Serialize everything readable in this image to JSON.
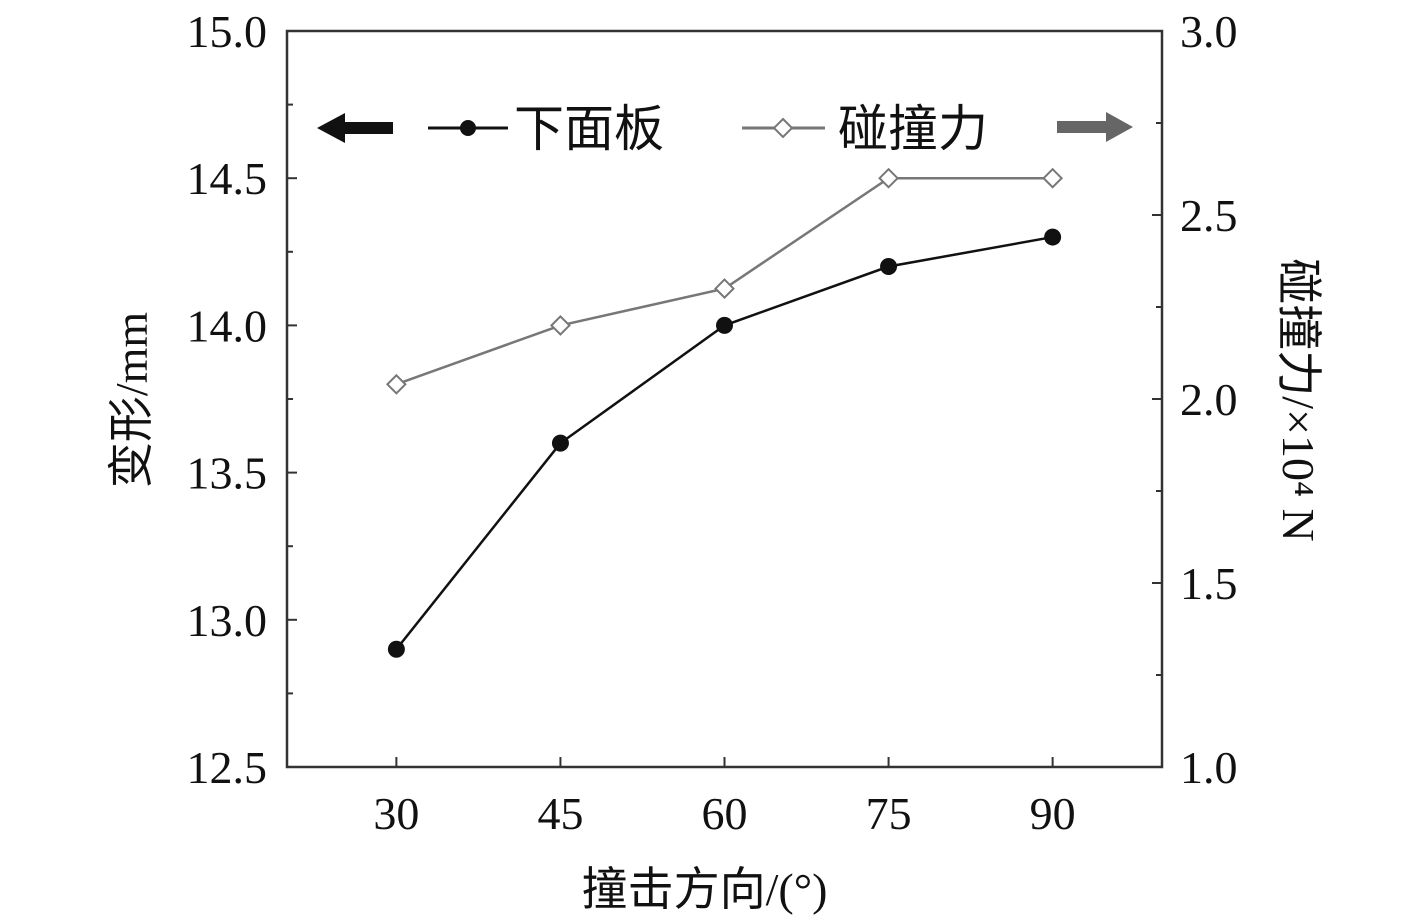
{
  "chart_data": {
    "type": "line",
    "x": [
      30,
      45,
      60,
      75,
      90
    ],
    "xlabel": "撞击方向/(°)",
    "xticks": [
      "30",
      "45",
      "60",
      "75",
      "90"
    ],
    "xlim": [
      20,
      100
    ],
    "ylabel_left": "变形/mm",
    "yticks_left": [
      "12.5",
      "13.0",
      "13.5",
      "14.0",
      "14.5",
      "15.0"
    ],
    "ylim_left": [
      12.5,
      15.0
    ],
    "ylabel_right": "碰撞力/×10⁴ N",
    "yticks_right": [
      "1.0",
      "1.5",
      "2.0",
      "2.5",
      "3.0"
    ],
    "ylim_right": [
      1.0,
      3.0
    ],
    "legend_placement": "top",
    "series": [
      {
        "name": "下面板",
        "axis": "left",
        "values": [
          12.9,
          13.6,
          14.0,
          14.2,
          14.3
        ],
        "color": "#111111",
        "marker": "filled-circle"
      },
      {
        "name": "碰撞力",
        "axis": "right",
        "values": [
          2.04,
          2.2,
          2.3,
          2.6,
          2.6
        ],
        "color": "#777777",
        "marker": "hollow-diamond"
      }
    ],
    "legend_arrows": {
      "left": {
        "icon": "arrow-left-icon",
        "color": "#111111"
      },
      "right": {
        "icon": "arrow-right-icon",
        "color": "#666666"
      }
    },
    "grid": false
  }
}
